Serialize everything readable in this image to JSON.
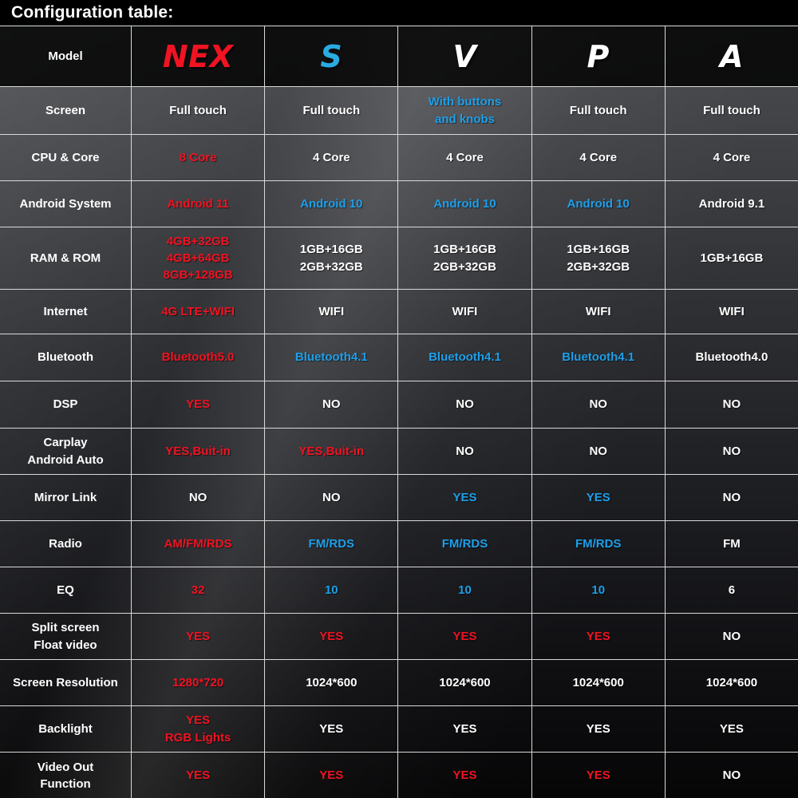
{
  "title": "Configuration table:",
  "colors": {
    "red": "#f01322",
    "blue": "#1e9fe9",
    "s_blue": "#29abe2",
    "white": "#ffffff"
  },
  "chart_data": {
    "type": "table",
    "title": "Configuration table:",
    "columns": [
      "Model",
      "NEX",
      "S",
      "V",
      "P",
      "A"
    ],
    "header": {
      "label": "Model",
      "models": [
        {
          "name": "NEX",
          "color": "red"
        },
        {
          "name": "S",
          "color": "s_blue"
        },
        {
          "name": "V",
          "color": "white"
        },
        {
          "name": "P",
          "color": "white"
        },
        {
          "name": "A",
          "color": "white"
        }
      ]
    },
    "rows": [
      {
        "label_lines": [
          "Screen"
        ],
        "cells": [
          {
            "lines": [
              "Full touch"
            ],
            "color": "white"
          },
          {
            "lines": [
              "Full touch"
            ],
            "color": "white"
          },
          {
            "lines": [
              "With buttons",
              "and knobs"
            ],
            "color": "blue"
          },
          {
            "lines": [
              "Full touch"
            ],
            "color": "white"
          },
          {
            "lines": [
              "Full touch"
            ],
            "color": "white"
          }
        ]
      },
      {
        "label_lines": [
          "CPU & Core"
        ],
        "cells": [
          {
            "lines": [
              "8 Core"
            ],
            "color": "red"
          },
          {
            "lines": [
              "4 Core"
            ],
            "color": "white"
          },
          {
            "lines": [
              "4 Core"
            ],
            "color": "white"
          },
          {
            "lines": [
              "4 Core"
            ],
            "color": "white"
          },
          {
            "lines": [
              "4 Core"
            ],
            "color": "white"
          }
        ]
      },
      {
        "label_lines": [
          "Android System"
        ],
        "cells": [
          {
            "lines": [
              "Android 11"
            ],
            "color": "red"
          },
          {
            "lines": [
              "Android 10"
            ],
            "color": "blue"
          },
          {
            "lines": [
              "Android 10"
            ],
            "color": "blue"
          },
          {
            "lines": [
              "Android 10"
            ],
            "color": "blue"
          },
          {
            "lines": [
              "Android 9.1"
            ],
            "color": "white"
          }
        ]
      },
      {
        "label_lines": [
          "RAM & ROM"
        ],
        "cells": [
          {
            "lines": [
              "4GB+32GB",
              "4GB+64GB",
              "8GB+128GB"
            ],
            "color": "red"
          },
          {
            "lines": [
              "1GB+16GB",
              "2GB+32GB"
            ],
            "color": "white"
          },
          {
            "lines": [
              "1GB+16GB",
              "2GB+32GB"
            ],
            "color": "white"
          },
          {
            "lines": [
              "1GB+16GB",
              "2GB+32GB"
            ],
            "color": "white"
          },
          {
            "lines": [
              "1GB+16GB"
            ],
            "color": "white"
          }
        ]
      },
      {
        "label_lines": [
          "Internet"
        ],
        "cells": [
          {
            "lines": [
              "4G LTE+WIFI"
            ],
            "color": "red"
          },
          {
            "lines": [
              "WIFI"
            ],
            "color": "white"
          },
          {
            "lines": [
              "WIFI"
            ],
            "color": "white"
          },
          {
            "lines": [
              "WIFI"
            ],
            "color": "white"
          },
          {
            "lines": [
              "WIFI"
            ],
            "color": "white"
          }
        ]
      },
      {
        "label_lines": [
          "Bluetooth"
        ],
        "cells": [
          {
            "lines": [
              "Bluetooth5.0"
            ],
            "color": "red"
          },
          {
            "lines": [
              "Bluetooth4.1"
            ],
            "color": "blue"
          },
          {
            "lines": [
              "Bluetooth4.1"
            ],
            "color": "blue"
          },
          {
            "lines": [
              "Bluetooth4.1"
            ],
            "color": "blue"
          },
          {
            "lines": [
              "Bluetooth4.0"
            ],
            "color": "white"
          }
        ]
      },
      {
        "label_lines": [
          "DSP"
        ],
        "cells": [
          {
            "lines": [
              "YES"
            ],
            "color": "red"
          },
          {
            "lines": [
              "NO"
            ],
            "color": "white"
          },
          {
            "lines": [
              "NO"
            ],
            "color": "white"
          },
          {
            "lines": [
              "NO"
            ],
            "color": "white"
          },
          {
            "lines": [
              "NO"
            ],
            "color": "white"
          }
        ]
      },
      {
        "label_lines": [
          "Carplay",
          "Android Auto"
        ],
        "cells": [
          {
            "lines": [
              "YES,Buit-in"
            ],
            "color": "red"
          },
          {
            "lines": [
              "YES,Buit-in"
            ],
            "color": "red"
          },
          {
            "lines": [
              "NO"
            ],
            "color": "white"
          },
          {
            "lines": [
              "NO"
            ],
            "color": "white"
          },
          {
            "lines": [
              "NO"
            ],
            "color": "white"
          }
        ]
      },
      {
        "label_lines": [
          "Mirror Link"
        ],
        "cells": [
          {
            "lines": [
              "NO"
            ],
            "color": "white"
          },
          {
            "lines": [
              "NO"
            ],
            "color": "white"
          },
          {
            "lines": [
              "YES"
            ],
            "color": "blue"
          },
          {
            "lines": [
              "YES"
            ],
            "color": "blue"
          },
          {
            "lines": [
              "NO"
            ],
            "color": "white"
          }
        ]
      },
      {
        "label_lines": [
          "Radio"
        ],
        "cells": [
          {
            "lines": [
              "AM/FM/RDS"
            ],
            "color": "red"
          },
          {
            "lines": [
              "FM/RDS"
            ],
            "color": "blue"
          },
          {
            "lines": [
              "FM/RDS"
            ],
            "color": "blue"
          },
          {
            "lines": [
              "FM/RDS"
            ],
            "color": "blue"
          },
          {
            "lines": [
              "FM"
            ],
            "color": "white"
          }
        ]
      },
      {
        "label_lines": [
          "EQ"
        ],
        "cells": [
          {
            "lines": [
              "32"
            ],
            "color": "red"
          },
          {
            "lines": [
              "10"
            ],
            "color": "blue"
          },
          {
            "lines": [
              "10"
            ],
            "color": "blue"
          },
          {
            "lines": [
              "10"
            ],
            "color": "blue"
          },
          {
            "lines": [
              "6"
            ],
            "color": "white"
          }
        ]
      },
      {
        "label_lines": [
          "Split screen",
          "Float video"
        ],
        "cells": [
          {
            "lines": [
              "YES"
            ],
            "color": "red"
          },
          {
            "lines": [
              "YES"
            ],
            "color": "red"
          },
          {
            "lines": [
              "YES"
            ],
            "color": "red"
          },
          {
            "lines": [
              "YES"
            ],
            "color": "red"
          },
          {
            "lines": [
              "NO"
            ],
            "color": "white"
          }
        ]
      },
      {
        "label_lines": [
          "Screen Resolution"
        ],
        "cells": [
          {
            "lines": [
              "1280*720"
            ],
            "color": "red"
          },
          {
            "lines": [
              "1024*600"
            ],
            "color": "white"
          },
          {
            "lines": [
              "1024*600"
            ],
            "color": "white"
          },
          {
            "lines": [
              "1024*600"
            ],
            "color": "white"
          },
          {
            "lines": [
              "1024*600"
            ],
            "color": "white"
          }
        ]
      },
      {
        "label_lines": [
          "Backlight"
        ],
        "cells": [
          {
            "lines": [
              "YES",
              "RGB Lights"
            ],
            "color": "red"
          },
          {
            "lines": [
              "YES"
            ],
            "color": "white"
          },
          {
            "lines": [
              "YES"
            ],
            "color": "white"
          },
          {
            "lines": [
              "YES"
            ],
            "color": "white"
          },
          {
            "lines": [
              "YES"
            ],
            "color": "white"
          }
        ]
      },
      {
        "label_lines": [
          "Video Out",
          "Function"
        ],
        "cells": [
          {
            "lines": [
              "YES"
            ],
            "color": "red"
          },
          {
            "lines": [
              "YES"
            ],
            "color": "red"
          },
          {
            "lines": [
              "YES"
            ],
            "color": "red"
          },
          {
            "lines": [
              "YES"
            ],
            "color": "red"
          },
          {
            "lines": [
              "NO"
            ],
            "color": "white"
          }
        ]
      }
    ]
  }
}
